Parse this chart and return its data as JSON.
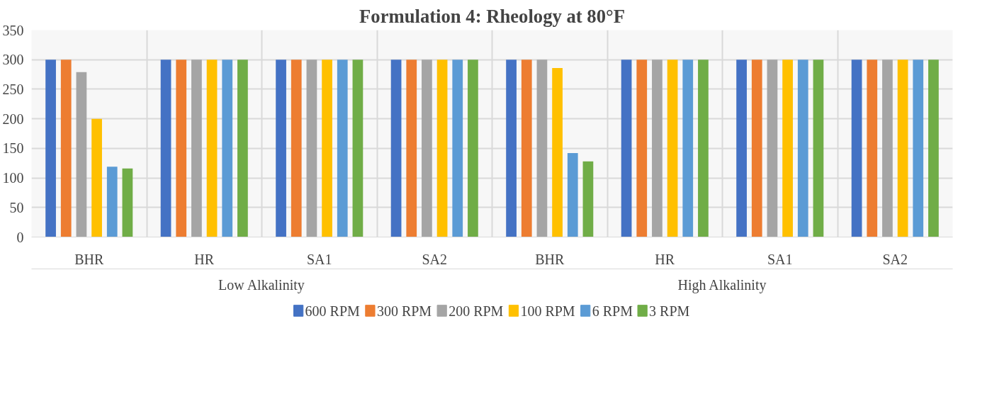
{
  "chart_data": {
    "type": "bar",
    "title": "Formulation 4: Rheology at 80°F",
    "categories": [
      "BHR",
      "HR",
      "SA1",
      "SA2",
      "BHR",
      "HR",
      "SA1",
      "SA2"
    ],
    "annotations": [
      "Low Alkalinity",
      "High Alkalinity"
    ],
    "series": [
      {
        "name": "600 RPM",
        "color": "#4472c4",
        "values": [
          300,
          300,
          300,
          300,
          300,
          300,
          300,
          300
        ]
      },
      {
        "name": "300 RPM",
        "color": "#ed7d31",
        "values": [
          300,
          300,
          300,
          300,
          300,
          300,
          300,
          300
        ]
      },
      {
        "name": "200 RPM",
        "color": "#a5a5a5",
        "values": [
          279,
          300,
          300,
          300,
          300,
          300,
          300,
          300
        ]
      },
      {
        "name": "100 RPM",
        "color": "#ffc000",
        "values": [
          200,
          300,
          300,
          300,
          286,
          300,
          300,
          300
        ]
      },
      {
        "name": "6 RPM",
        "color": "#5b9bd5",
        "values": [
          119,
          300,
          300,
          300,
          142,
          300,
          300,
          300
        ]
      },
      {
        "name": "3 RPM",
        "color": "#70ad47",
        "values": [
          116,
          300,
          300,
          300,
          128,
          300,
          300,
          300
        ]
      }
    ],
    "ylim": [
      0,
      350
    ],
    "yticks": [
      0,
      50,
      100,
      150,
      200,
      250,
      300,
      350
    ],
    "grid": true,
    "legend": "bottom"
  }
}
